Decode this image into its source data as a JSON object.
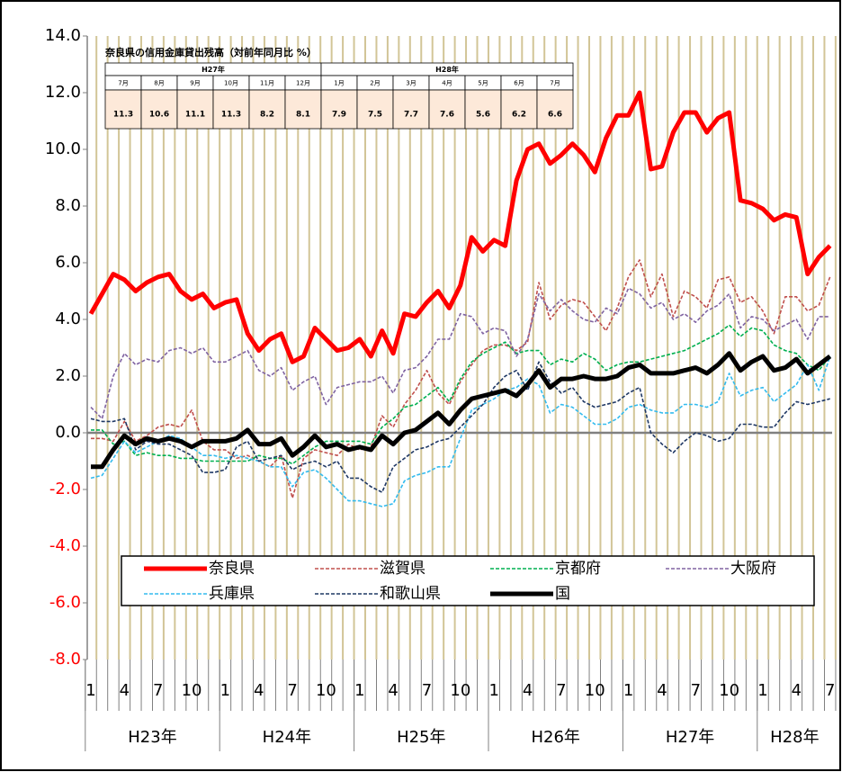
{
  "chart_data": {
    "type": "line",
    "categories": [
      "1",
      null,
      null,
      "4",
      null,
      null,
      "7",
      null,
      null,
      "10",
      null,
      null,
      "1",
      null,
      null,
      "4",
      null,
      null,
      "7",
      null,
      null,
      "10",
      null,
      null,
      "1",
      null,
      null,
      "4",
      null,
      null,
      "7",
      null,
      null,
      "10",
      null,
      null,
      "1",
      null,
      null,
      "4",
      null,
      null,
      "7",
      null,
      null,
      "10",
      null,
      null,
      "1",
      null,
      null,
      "4",
      null,
      null,
      "7",
      null,
      null,
      "10",
      null,
      null,
      "1",
      null,
      null,
      "4",
      null,
      null,
      "7"
    ],
    "years": [
      "H23年",
      "H24年",
      "H25年",
      "H26年",
      "H27年",
      "H28年"
    ],
    "ylim": [
      -8,
      14
    ],
    "yticks": [
      {
        "value": -8,
        "label": "-8.0"
      },
      {
        "value": -6,
        "label": "-6.0"
      },
      {
        "value": -4,
        "label": "-4.0"
      },
      {
        "value": -2,
        "label": "-2.0"
      },
      {
        "value": 0,
        "label": "0.0"
      },
      {
        "value": 2,
        "label": "2.0"
      },
      {
        "value": 4,
        "label": "4.0"
      },
      {
        "value": 6,
        "label": "6.0"
      },
      {
        "value": 8,
        "label": "8.0"
      },
      {
        "value": 10,
        "label": "10.0"
      },
      {
        "value": 12,
        "label": "12.0"
      },
      {
        "value": 14,
        "label": "14.0"
      }
    ],
    "grid": true,
    "series": [
      {
        "name": "奈良県",
        "color": "#ff0000",
        "style": "solid",
        "values": [
          4.2,
          4.9,
          5.6,
          5.4,
          5.0,
          5.3,
          5.5,
          5.6,
          5.0,
          4.7,
          4.9,
          4.4,
          4.6,
          4.7,
          3.5,
          2.9,
          3.3,
          3.5,
          2.5,
          2.7,
          3.7,
          3.3,
          2.9,
          3.0,
          3.3,
          2.7,
          3.6,
          2.8,
          4.2,
          4.1,
          4.6,
          5.0,
          4.4,
          5.2,
          6.9,
          6.4,
          6.8,
          6.6,
          8.9,
          10.0,
          10.2,
          9.5,
          9.8,
          10.2,
          9.8,
          9.2,
          10.4,
          11.2,
          11.2,
          12.0,
          9.3,
          9.4,
          10.6,
          11.3,
          11.3,
          10.6,
          11.1,
          11.3,
          8.2,
          8.1,
          7.9,
          7.5,
          7.7,
          7.6,
          5.6,
          6.2,
          6.6
        ]
      },
      {
        "name": "滋賀県",
        "color": "#c0504d",
        "style": "dashed",
        "values": [
          -0.2,
          -0.2,
          -0.3,
          0.4,
          -0.3,
          -0.1,
          0.2,
          0.3,
          0.2,
          0.8,
          -0.3,
          -0.6,
          -0.6,
          -0.9,
          -0.8,
          -1.0,
          -1.2,
          -0.8,
          -2.3,
          -0.9,
          -0.6,
          -0.7,
          -0.8,
          -0.4,
          -0.6,
          -0.5,
          0.6,
          0.2,
          1.0,
          1.5,
          2.2,
          1.4,
          1.0,
          1.8,
          2.4,
          2.9,
          3.1,
          3.1,
          2.9,
          3.2,
          5.3,
          4.0,
          4.5,
          4.7,
          4.6,
          4.1,
          3.6,
          4.4,
          5.5,
          6.1,
          4.8,
          5.6,
          4.1,
          5.0,
          4.8,
          4.4,
          5.4,
          5.5,
          4.6,
          4.8,
          4.3,
          3.5,
          4.8,
          4.8,
          4.3,
          4.5,
          5.5
        ]
      },
      {
        "name": "京都府",
        "color": "#00b050",
        "style": "dashed",
        "values": [
          0.1,
          0.1,
          -0.4,
          -0.3,
          -0.8,
          -0.7,
          -0.8,
          -0.8,
          -0.9,
          -0.9,
          -1.0,
          -1.0,
          -1.0,
          -1.0,
          -1.0,
          -0.8,
          -0.9,
          -0.9,
          -1.1,
          -0.8,
          -0.5,
          -0.3,
          -0.3,
          -0.3,
          -0.3,
          -0.4,
          0.2,
          0.5,
          0.9,
          1.0,
          1.3,
          1.6,
          1.1,
          1.9,
          2.5,
          2.8,
          3.0,
          3.2,
          2.8,
          2.9,
          2.9,
          2.4,
          2.6,
          2.5,
          2.8,
          2.6,
          2.2,
          2.4,
          2.5,
          2.5,
          2.6,
          2.7,
          2.8,
          2.9,
          3.1,
          3.3,
          3.5,
          3.8,
          3.4,
          3.7,
          3.6,
          3.1,
          2.9,
          2.8,
          2.4,
          2.2,
          2.7
        ]
      },
      {
        "name": "大阪府",
        "color": "#8064a2",
        "style": "dashed",
        "values": [
          0.9,
          0.5,
          2.0,
          2.8,
          2.4,
          2.6,
          2.5,
          2.9,
          3.0,
          2.8,
          3.0,
          2.5,
          2.5,
          2.7,
          2.9,
          2.2,
          2.0,
          2.3,
          1.5,
          1.8,
          2.0,
          1.0,
          1.6,
          1.7,
          1.8,
          1.8,
          2.0,
          1.4,
          2.2,
          2.3,
          2.7,
          3.3,
          3.3,
          4.2,
          4.1,
          3.5,
          3.7,
          3.6,
          2.7,
          3.3,
          4.9,
          4.3,
          4.7,
          4.3,
          4.0,
          3.9,
          4.4,
          4.2,
          5.1,
          4.9,
          4.4,
          4.6,
          4.0,
          4.2,
          3.9,
          4.3,
          4.5,
          4.9,
          3.7,
          4.1,
          4.0,
          3.6,
          3.8,
          4.0,
          3.3,
          4.1,
          4.1
        ]
      },
      {
        "name": "兵庫県",
        "color": "#33bbee",
        "style": "dashed",
        "values": [
          -1.6,
          -1.5,
          -0.9,
          -0.3,
          -0.7,
          -0.5,
          -0.3,
          -0.1,
          -0.2,
          -0.5,
          -0.8,
          -0.8,
          -0.9,
          -0.8,
          -0.9,
          -1.0,
          -1.2,
          -1.2,
          -1.9,
          -1.4,
          -1.3,
          -1.6,
          -2.0,
          -2.4,
          -2.4,
          -2.5,
          -2.6,
          -2.5,
          -1.7,
          -1.5,
          -1.4,
          -1.2,
          -1.2,
          -0.2,
          0.8,
          1.0,
          1.2,
          1.5,
          1.6,
          1.9,
          1.7,
          0.7,
          1.0,
          0.9,
          0.6,
          0.3,
          0.3,
          0.5,
          0.9,
          1.0,
          0.8,
          0.7,
          0.7,
          1.0,
          1.0,
          0.9,
          1.1,
          2.1,
          1.3,
          1.5,
          1.6,
          1.1,
          1.4,
          1.7,
          2.4,
          1.5,
          2.7
        ]
      },
      {
        "name": "和歌山県",
        "color": "#1f3864",
        "style": "dashed",
        "values": [
          0.5,
          0.4,
          0.4,
          0.5,
          -0.6,
          -0.3,
          -0.4,
          -0.4,
          -0.6,
          -0.8,
          -1.4,
          -1.4,
          -1.3,
          -0.5,
          -0.3,
          -1.0,
          -0.9,
          -0.8,
          -1.3,
          -1.1,
          -1.0,
          -1.2,
          -1.0,
          -1.6,
          -1.6,
          -1.9,
          -2.1,
          -1.2,
          -0.9,
          -0.6,
          -0.5,
          -0.3,
          -0.2,
          0.2,
          0.6,
          1.0,
          1.6,
          2.0,
          2.2,
          1.5,
          2.5,
          1.8,
          1.4,
          1.6,
          1.1,
          0.9,
          1.0,
          1.1,
          1.4,
          1.6,
          0.0,
          -0.4,
          -0.7,
          -0.3,
          0.0,
          -0.1,
          -0.3,
          -0.2,
          0.3,
          0.3,
          0.2,
          0.2,
          0.7,
          1.1,
          1.0,
          1.1,
          1.2
        ]
      },
      {
        "name": "国",
        "color": "#000000",
        "style": "solid",
        "values": [
          -1.2,
          -1.2,
          -0.6,
          -0.1,
          -0.4,
          -0.2,
          -0.3,
          -0.2,
          -0.3,
          -0.5,
          -0.3,
          -0.3,
          -0.3,
          -0.2,
          0.1,
          -0.4,
          -0.4,
          -0.2,
          -0.8,
          -0.5,
          -0.1,
          -0.5,
          -0.4,
          -0.6,
          -0.5,
          -0.6,
          -0.1,
          -0.4,
          0.0,
          0.1,
          0.4,
          0.7,
          0.3,
          0.8,
          1.2,
          1.3,
          1.4,
          1.5,
          1.3,
          1.7,
          2.2,
          1.6,
          1.9,
          1.9,
          2.0,
          1.9,
          1.9,
          2.0,
          2.3,
          2.4,
          2.1,
          2.1,
          2.1,
          2.2,
          2.3,
          2.1,
          2.4,
          2.8,
          2.2,
          2.5,
          2.7,
          2.2,
          2.3,
          2.6,
          2.1,
          2.4,
          2.7
        ]
      }
    ],
    "inset_table": {
      "title": "奈良県の信用金庫貸出残高（対前年同月比 %）",
      "groups": [
        {
          "name": "H27年",
          "months": [
            "7月",
            "8月",
            "9月",
            "10月",
            "11月",
            "12月"
          ],
          "values": [
            11.3,
            10.6,
            11.1,
            11.3,
            8.2,
            8.1
          ]
        },
        {
          "name": "H28年",
          "months": [
            "1月",
            "2月",
            "3月",
            "4月",
            "5月",
            "6月",
            "7月"
          ],
          "values": [
            7.9,
            7.5,
            7.7,
            7.6,
            5.6,
            6.2,
            6.6
          ]
        }
      ]
    }
  }
}
